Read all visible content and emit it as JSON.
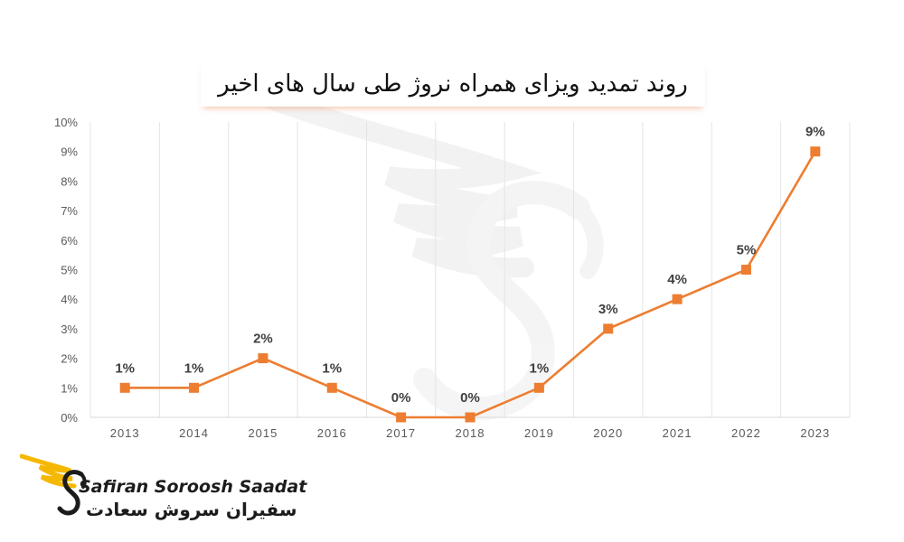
{
  "chart_data": {
    "type": "line",
    "title": "روند تمدید ویزای همراه نروژ طی سال های اخیر",
    "categories": [
      "2013",
      "2014",
      "2015",
      "2016",
      "2017",
      "2018",
      "2019",
      "2020",
      "2021",
      "2022",
      "2023"
    ],
    "series": [
      {
        "values": [
          1,
          1,
          2,
          1,
          0,
          0,
          1,
          3,
          4,
          5,
          9
        ],
        "labels": [
          "1%",
          "1%",
          "2%",
          "1%",
          "0%",
          "0%",
          "1%",
          "3%",
          "4%",
          "5%",
          "9%"
        ]
      }
    ],
    "y_ticks": [
      "0%",
      "1%",
      "2%",
      "3%",
      "4%",
      "5%",
      "6%",
      "7%",
      "8%",
      "9%",
      "10%"
    ],
    "ylim": [
      0,
      10
    ],
    "y_unit": "%",
    "grid": "vertical",
    "line_color": "#ED7D31",
    "marker": "square"
  },
  "logo": {
    "text_en": "Safiran Soroosh Saadat",
    "text_fa": "سفیران سروش سعادت",
    "accent_color": "#F5B800"
  }
}
